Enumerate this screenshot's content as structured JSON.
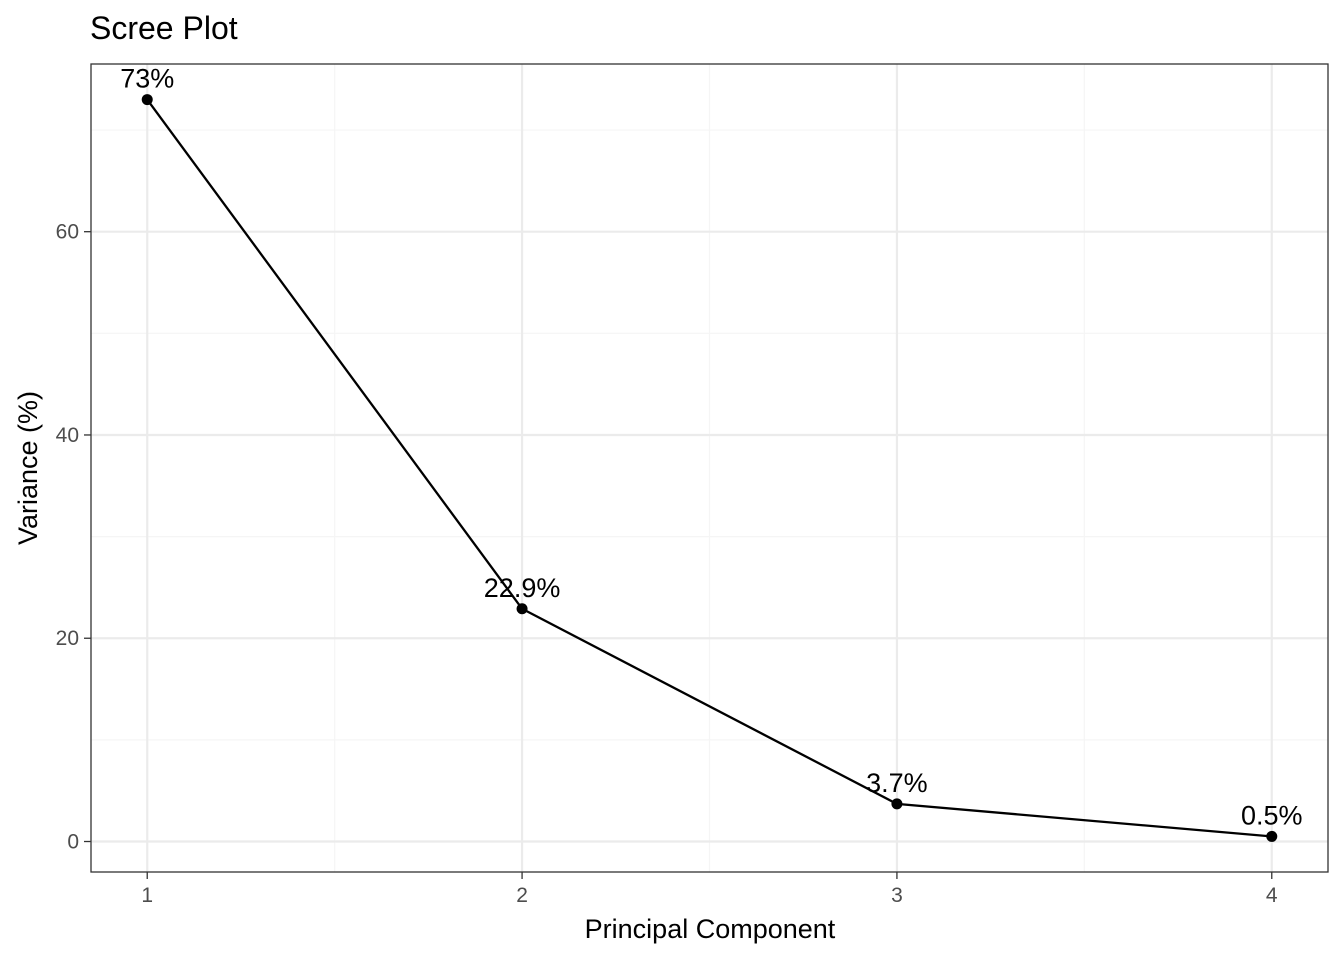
{
  "chart_data": {
    "type": "line",
    "title": "Scree Plot",
    "xlabel": "Principal Component",
    "ylabel": "Variance (%)",
    "x": [
      1,
      2,
      3,
      4
    ],
    "values": [
      73.0,
      22.9,
      3.7,
      0.5
    ],
    "data_labels": [
      "73%",
      "22.9%",
      "3.7%",
      "0.5%"
    ],
    "x_ticks": [
      1,
      2,
      3,
      4
    ],
    "x_tick_labels": [
      "1",
      "2",
      "3",
      "4"
    ],
    "y_ticks": [
      0,
      20,
      40,
      60
    ],
    "y_tick_labels": [
      "0",
      "20",
      "40",
      "60"
    ],
    "xlim": [
      0.85,
      4.15
    ],
    "ylim": [
      -3.0,
      76.5
    ],
    "grid": true,
    "legend": "none",
    "colors": {
      "line": "#000000",
      "point": "#000000",
      "panel_border": "#333333",
      "grid_major": "#ebebeb",
      "grid_minor": "#f5f5f5",
      "tick_text": "#4d4d4d"
    }
  }
}
